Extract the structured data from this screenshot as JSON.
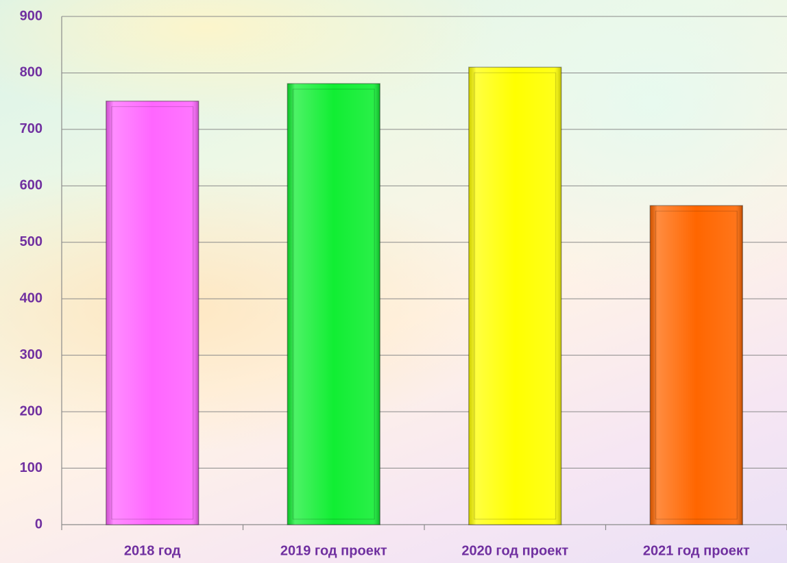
{
  "chart_data": {
    "type": "bar",
    "categories": [
      "2018 год",
      "2019 год проект",
      "2020 год проект",
      "2021 год проект"
    ],
    "values": [
      750,
      781,
      810,
      565
    ],
    "colors": [
      "#ff66ff",
      "#11ee33",
      "#ffff00",
      "#ff6600"
    ],
    "ylim": [
      0,
      900
    ],
    "yticks": [
      0,
      100,
      200,
      300,
      400,
      500,
      600,
      700,
      800,
      900
    ],
    "grid": true
  }
}
